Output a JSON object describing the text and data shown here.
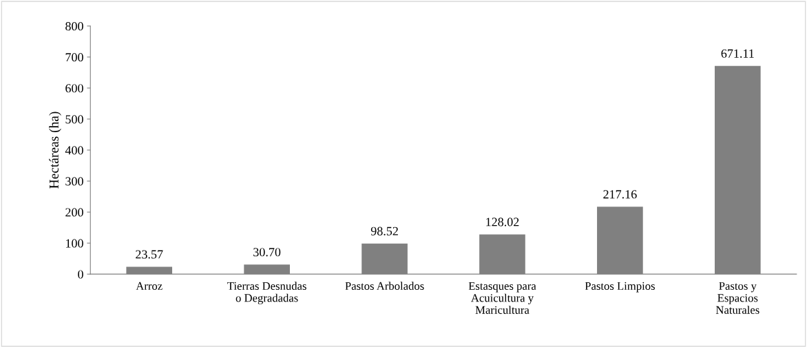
{
  "chart_data": {
    "type": "bar",
    "ylabel": "Hectáreas (ha)",
    "categories": [
      "Arroz",
      "Tierras Desnudas\no Degradadas",
      "Pastos Arbolados",
      "Estasques para\nAcuicultura y\nMaricultura",
      "Pastos Limpios",
      "Pastos y\nEspacios\nNaturales"
    ],
    "values": [
      23.57,
      30.7,
      98.52,
      128.02,
      217.16,
      671.11
    ],
    "value_labels": [
      "23.57",
      "30.70",
      "98.52",
      "128.02",
      "217.16",
      "671.11"
    ],
    "color": "#808080",
    "ylim": [
      0,
      800
    ],
    "yticks": [
      0,
      100,
      200,
      300,
      400,
      500,
      600,
      700,
      800
    ],
    "grid": false,
    "legend": false
  }
}
